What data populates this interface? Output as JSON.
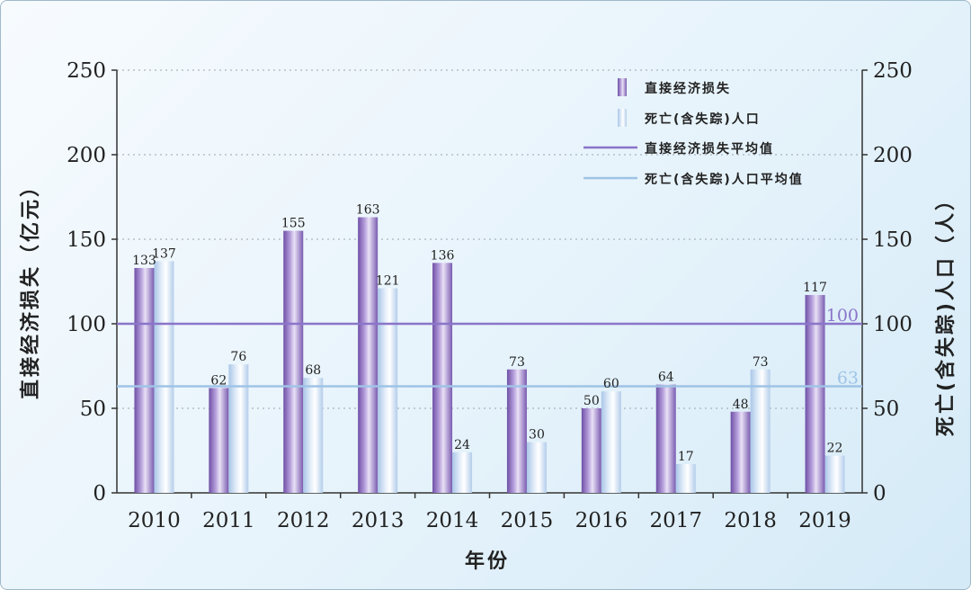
{
  "chart_data": {
    "type": "bar",
    "categories": [
      "2010",
      "2011",
      "2012",
      "2013",
      "2014",
      "2015",
      "2016",
      "2017",
      "2018",
      "2019"
    ],
    "series": [
      {
        "name": "直接经济损失",
        "values": [
          133,
          62,
          155,
          163,
          136,
          73,
          50,
          64,
          48,
          117
        ],
        "axis": "left",
        "color": "#8e6bc0"
      },
      {
        "name": "死亡(含失踪)人口",
        "values": [
          137,
          76,
          68,
          121,
          24,
          30,
          60,
          17,
          73,
          22
        ],
        "axis": "right",
        "color": "#b8d2ee"
      }
    ],
    "reference_lines": [
      {
        "name": "直接经济损失平均值",
        "value": 100,
        "label": "100",
        "color": "#8a75c9"
      },
      {
        "name": "死亡(含失踪)人口平均值",
        "value": 63,
        "label": "63",
        "color": "#9fc3e6"
      }
    ],
    "xlabel": "年份",
    "ylabel_left": "直接经济损失（亿元）",
    "ylabel_right": "死亡(含失踪)人口（人）",
    "ylim": [
      0,
      250
    ],
    "yticks": [
      0,
      50,
      100,
      150,
      200,
      250
    ],
    "grid": true,
    "legend_position": "top-right"
  }
}
